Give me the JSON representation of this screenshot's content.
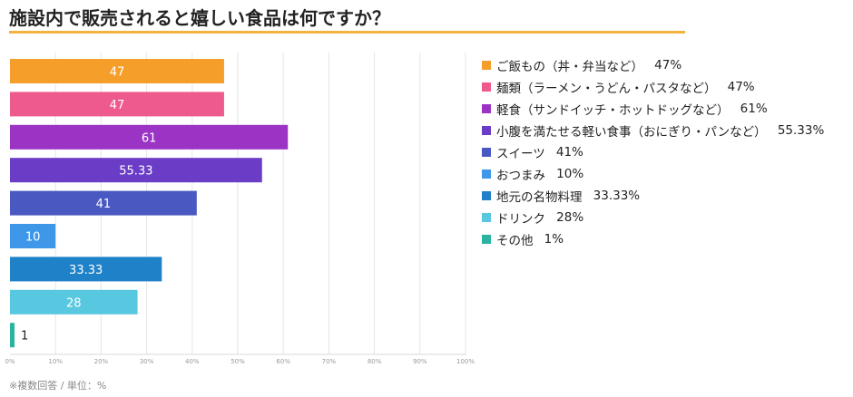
{
  "title": "施設内で販売されると嬉しい食品は何ですか？",
  "footnote": "※複数回答 / 単位：%",
  "colors": {
    "title_rule": "#f4b23e",
    "grid": "#e6e6e6",
    "axis": "#d8d8d8",
    "tick_text": "#999999"
  },
  "chart_data": {
    "type": "bar",
    "orientation": "horizontal",
    "xlim": [
      0,
      100
    ],
    "grid": true,
    "legend_position": "right",
    "x_ticks": [
      "0%",
      "10%",
      "20%",
      "30%",
      "40%",
      "50%",
      "60%",
      "70%",
      "80%",
      "90%",
      "100%"
    ],
    "categories": [
      "ご飯もの（丼・弁当など）",
      "麺類（ラーメン・うどん・パスタなど）",
      "軽食（サンドイッチ・ホットドッグなど）",
      "小腹を満たせる軽い食事（おにぎり・パンなど）",
      "スイーツ",
      "おつまみ",
      "地元の名物料理",
      "ドリンク",
      "その他"
    ],
    "values": [
      47,
      47,
      61,
      55.33,
      41,
      10,
      33.33,
      28,
      1
    ],
    "value_labels": [
      "47",
      "47",
      "61",
      "55.33",
      "41",
      "10",
      "33.33",
      "28",
      "1"
    ],
    "legend_values": [
      "47%",
      "47%",
      "61%",
      "55.33%",
      "41%",
      "10%",
      "33.33%",
      "28%",
      "1%"
    ],
    "bar_colors": [
      "#f59f2a",
      "#ee5a8e",
      "#9b34c5",
      "#6b3cc6",
      "#4a59c2",
      "#3f97ea",
      "#1f82c9",
      "#58c8e0",
      "#2ab3a0"
    ]
  }
}
